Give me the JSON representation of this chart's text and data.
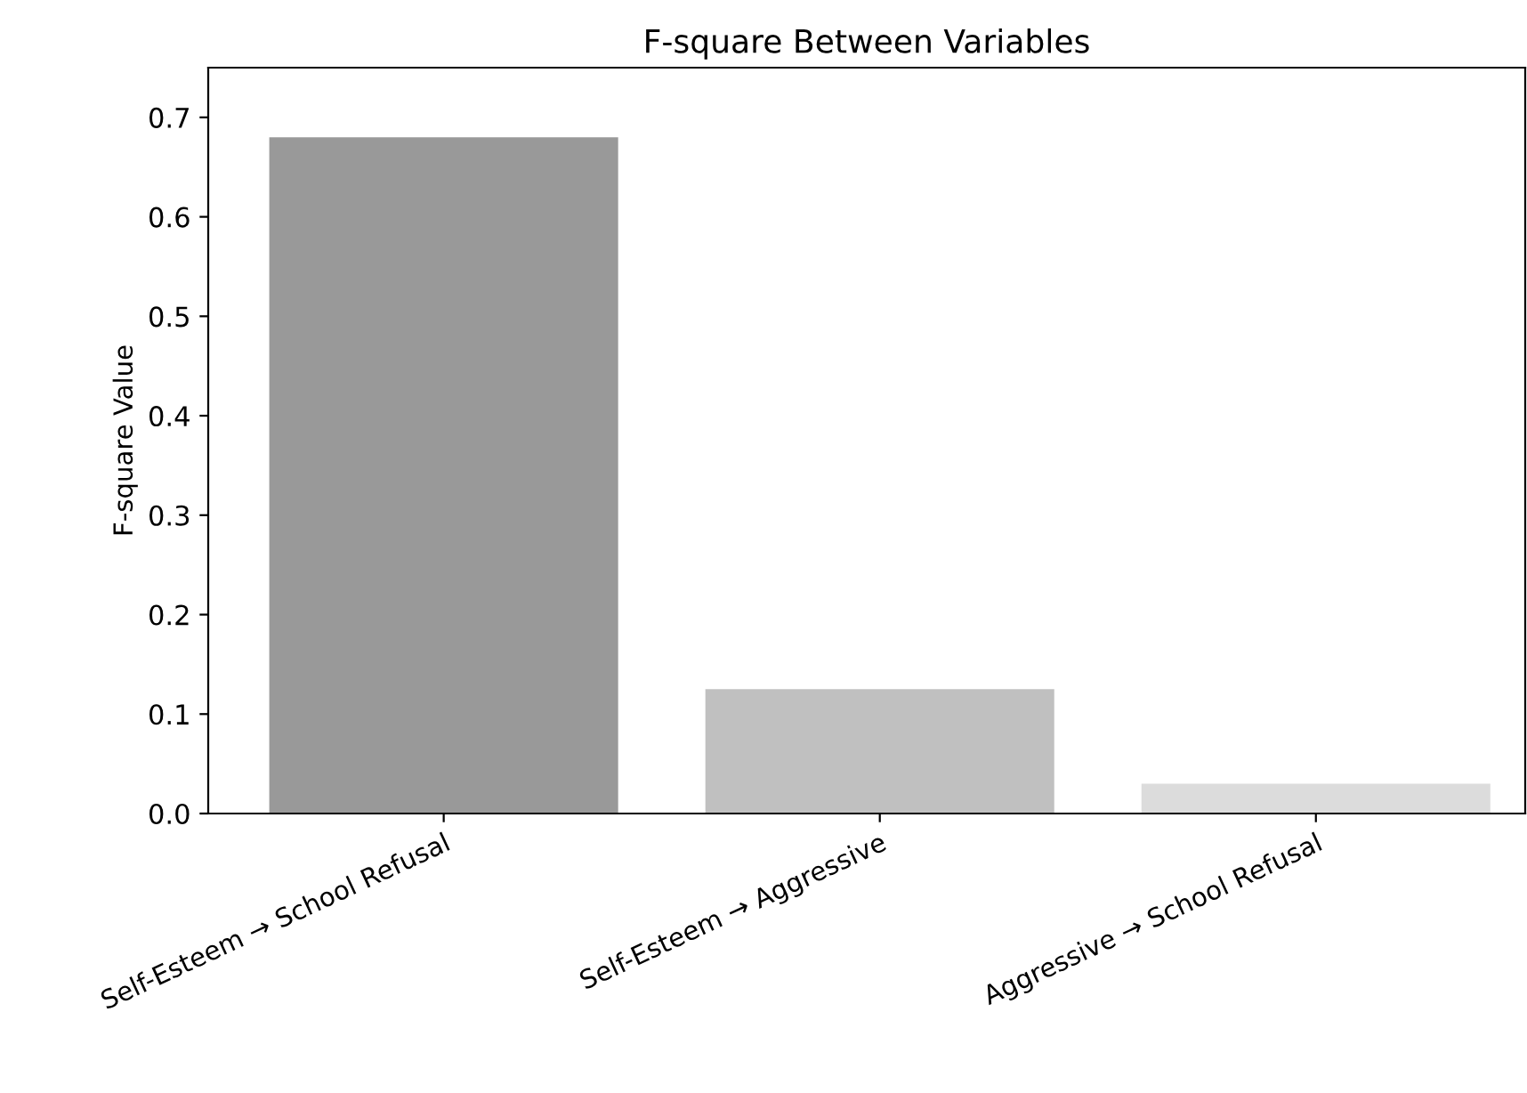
{
  "chart_data": {
    "type": "bar",
    "title": "F-square Between Variables",
    "ylabel": "F-square Value",
    "categories": [
      "Self-Esteem → School Refusal",
      "Self-Esteem → Aggressive",
      "Aggressive → School Refusal"
    ],
    "values": [
      0.68,
      0.125,
      0.03
    ],
    "colors": [
      "#999999",
      "#c0c0c0",
      "#dcdcdc"
    ],
    "ylim": [
      0,
      0.75
    ],
    "yticks": [
      {
        "value": 0,
        "label": "0.0"
      },
      0.1,
      0.2,
      0.3,
      0.4,
      0.5,
      0.6,
      0.7
    ],
    "grid": false
  }
}
